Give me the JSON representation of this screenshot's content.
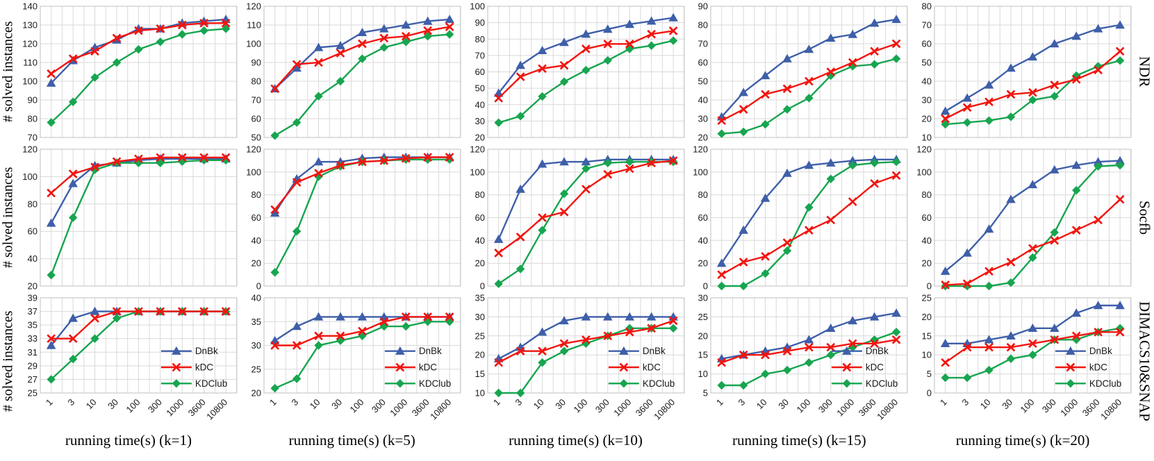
{
  "ylabel": "# solved instances",
  "row_labels": [
    "NDR",
    "Socfb",
    "DIMACS10&SNAP"
  ],
  "x_axis_titles": [
    "running time(s) (k=1)",
    "running time(s) (k=5)",
    "running time(s) (k=10)",
    "running time(s) (k=15)",
    "running time(s) (k=20)"
  ],
  "x_categories": [
    "1",
    "3",
    "10",
    "30",
    "100",
    "300",
    "1000",
    "3600",
    "10800"
  ],
  "legend": {
    "items": [
      "DnBk",
      "kDC",
      "KDClub"
    ],
    "position": "bottom-right-inside"
  },
  "series_colors": {
    "DnBk": "#3E5FA9",
    "kDC": "#F2150F",
    "KDClub": "#17A550"
  },
  "series_markers": {
    "DnBk": "triangle",
    "kDC": "x",
    "KDClub": "diamond"
  },
  "style_colors": {
    "grid": "#D9D9D9",
    "plot_border": "#BFBFBF",
    "tick_text": "#1A1A1A"
  },
  "chart_data": [
    {
      "type": "line",
      "group": "NDR",
      "k": 1,
      "ylim": [
        70,
        140
      ],
      "ystep": 10,
      "grid": true,
      "series": [
        {
          "name": "DnBk",
          "values": [
            99,
            111,
            118,
            122,
            128,
            128,
            131,
            132,
            133
          ]
        },
        {
          "name": "kDC",
          "values": [
            104,
            112,
            116,
            123,
            127,
            128,
            130,
            131,
            131
          ]
        },
        {
          "name": "KDClub",
          "values": [
            78,
            89,
            102,
            110,
            117,
            121,
            125,
            127,
            128
          ]
        }
      ]
    },
    {
      "type": "line",
      "group": "NDR",
      "k": 5,
      "ylim": [
        50,
        120
      ],
      "ystep": 10,
      "grid": true,
      "series": [
        {
          "name": "DnBk",
          "values": [
            76,
            87,
            98,
            99,
            106,
            108,
            110,
            112,
            113
          ]
        },
        {
          "name": "kDC",
          "values": [
            76,
            89,
            90,
            95,
            100,
            103,
            104,
            107,
            109
          ]
        },
        {
          "name": "KDClub",
          "values": [
            51,
            58,
            72,
            80,
            92,
            98,
            101,
            104,
            105
          ]
        }
      ]
    },
    {
      "type": "line",
      "group": "NDR",
      "k": 10,
      "ylim": [
        20,
        100
      ],
      "ystep": 10,
      "grid": true,
      "series": [
        {
          "name": "DnBk",
          "values": [
            47,
            64,
            73,
            78,
            83,
            86,
            89,
            91,
            93
          ]
        },
        {
          "name": "kDC",
          "values": [
            44,
            57,
            62,
            64,
            74,
            77,
            77,
            83,
            85
          ]
        },
        {
          "name": "KDClub",
          "values": [
            29,
            33,
            45,
            54,
            61,
            67,
            74,
            76,
            79
          ]
        }
      ]
    },
    {
      "type": "line",
      "group": "NDR",
      "k": 15,
      "ylim": [
        20,
        90
      ],
      "ystep": 10,
      "grid": true,
      "series": [
        {
          "name": "DnBk",
          "values": [
            31,
            44,
            53,
            62,
            67,
            73,
            75,
            81,
            83
          ]
        },
        {
          "name": "kDC",
          "values": [
            29,
            35,
            43,
            46,
            50,
            55,
            60,
            66,
            70
          ]
        },
        {
          "name": "KDClub",
          "values": [
            22,
            23,
            27,
            35,
            41,
            53,
            58,
            59,
            62
          ]
        }
      ]
    },
    {
      "type": "line",
      "group": "NDR",
      "k": 20,
      "ylim": [
        10,
        80
      ],
      "ystep": 10,
      "grid": true,
      "series": [
        {
          "name": "DnBk",
          "values": [
            24,
            31,
            38,
            47,
            53,
            60,
            64,
            68,
            70
          ]
        },
        {
          "name": "kDC",
          "values": [
            20,
            26,
            29,
            33,
            34,
            38,
            41,
            46,
            56
          ]
        },
        {
          "name": "KDClub",
          "values": [
            17,
            18,
            19,
            21,
            30,
            32,
            43,
            48,
            51
          ]
        }
      ]
    },
    {
      "type": "line",
      "group": "Socfb",
      "k": 1,
      "ylim": [
        20,
        120
      ],
      "ystep": 20,
      "grid": true,
      "series": [
        {
          "name": "DnBk",
          "values": [
            66,
            95,
            108,
            110,
            112,
            113,
            113,
            113,
            113
          ]
        },
        {
          "name": "kDC",
          "values": [
            88,
            102,
            107,
            111,
            113,
            114,
            114,
            114,
            114
          ]
        },
        {
          "name": "KDClub",
          "values": [
            28,
            70,
            105,
            110,
            110,
            110,
            111,
            112,
            112
          ]
        }
      ]
    },
    {
      "type": "line",
      "group": "Socfb",
      "k": 5,
      "ylim": [
        0,
        120
      ],
      "ystep": 20,
      "grid": true,
      "series": [
        {
          "name": "DnBk",
          "values": [
            64,
            94,
            109,
            109,
            112,
            113,
            113,
            113,
            113
          ]
        },
        {
          "name": "kDC",
          "values": [
            67,
            91,
            99,
            106,
            109,
            110,
            112,
            113,
            113
          ]
        },
        {
          "name": "KDClub",
          "values": [
            12,
            48,
            96,
            105,
            109,
            110,
            111,
            111,
            111
          ]
        }
      ]
    },
    {
      "type": "line",
      "group": "Socfb",
      "k": 10,
      "ylim": [
        0,
        120
      ],
      "ystep": 20,
      "grid": true,
      "series": [
        {
          "name": "DnBk",
          "values": [
            41,
            85,
            107,
            109,
            109,
            111,
            111,
            111,
            111
          ]
        },
        {
          "name": "kDC",
          "values": [
            29,
            43,
            60,
            65,
            85,
            98,
            103,
            108,
            110
          ]
        },
        {
          "name": "KDClub",
          "values": [
            2,
            15,
            49,
            81,
            103,
            108,
            109,
            109,
            109
          ]
        }
      ]
    },
    {
      "type": "line",
      "group": "Socfb",
      "k": 15,
      "ylim": [
        0,
        120
      ],
      "ystep": 20,
      "grid": true,
      "series": [
        {
          "name": "DnBk",
          "values": [
            20,
            49,
            77,
            99,
            106,
            108,
            110,
            111,
            111
          ]
        },
        {
          "name": "kDC",
          "values": [
            10,
            21,
            26,
            38,
            49,
            58,
            74,
            90,
            97
          ]
        },
        {
          "name": "KDClub",
          "values": [
            0,
            0,
            11,
            31,
            69,
            94,
            106,
            108,
            109
          ]
        }
      ]
    },
    {
      "type": "line",
      "group": "Socfb",
      "k": 20,
      "ylim": [
        0,
        120
      ],
      "ystep": 20,
      "grid": true,
      "series": [
        {
          "name": "DnBk",
          "values": [
            13,
            29,
            50,
            76,
            89,
            102,
            106,
            109,
            110
          ]
        },
        {
          "name": "kDC",
          "values": [
            1,
            2,
            13,
            21,
            33,
            40,
            49,
            58,
            76
          ]
        },
        {
          "name": "KDClub",
          "values": [
            0,
            0,
            0,
            3,
            25,
            47,
            84,
            105,
            106
          ]
        }
      ]
    },
    {
      "type": "line",
      "group": "DIMACS10&SNAP",
      "k": 1,
      "ylim": [
        25,
        39
      ],
      "ystep": 2,
      "grid": true,
      "legend": true,
      "xticks": true,
      "series": [
        {
          "name": "DnBk",
          "values": [
            32,
            36,
            37,
            37,
            37,
            37,
            37,
            37,
            37
          ]
        },
        {
          "name": "kDC",
          "values": [
            33,
            33,
            36,
            37,
            37,
            37,
            37,
            37,
            37
          ]
        },
        {
          "name": "KDClub",
          "values": [
            27,
            30,
            33,
            36,
            37,
            37,
            37,
            37,
            37
          ]
        }
      ]
    },
    {
      "type": "line",
      "group": "DIMACS10&SNAP",
      "k": 5,
      "ylim": [
        20,
        40
      ],
      "ystep": 5,
      "grid": true,
      "legend": true,
      "xticks": true,
      "series": [
        {
          "name": "DnBk",
          "values": [
            31,
            34,
            36,
            36,
            36,
            36,
            36,
            36,
            36
          ]
        },
        {
          "name": "kDC",
          "values": [
            30,
            30,
            32,
            32,
            33,
            35,
            36,
            36,
            36
          ]
        },
        {
          "name": "KDClub",
          "values": [
            21,
            23,
            30,
            31,
            32,
            34,
            34,
            35,
            35
          ]
        }
      ]
    },
    {
      "type": "line",
      "group": "DIMACS10&SNAP",
      "k": 10,
      "ylim": [
        10,
        35
      ],
      "ystep": 5,
      "grid": true,
      "legend": true,
      "xticks": true,
      "series": [
        {
          "name": "DnBk",
          "values": [
            19,
            22,
            26,
            29,
            30,
            30,
            30,
            30,
            30
          ]
        },
        {
          "name": "kDC",
          "values": [
            18,
            21,
            21,
            23,
            24,
            25,
            26,
            27,
            29
          ]
        },
        {
          "name": "KDClub",
          "values": [
            10,
            10,
            18,
            21,
            23,
            25,
            27,
            27,
            27
          ]
        }
      ]
    },
    {
      "type": "line",
      "group": "DIMACS10&SNAP",
      "k": 15,
      "ylim": [
        5,
        30
      ],
      "ystep": 5,
      "grid": true,
      "legend": true,
      "xticks": true,
      "series": [
        {
          "name": "DnBk",
          "values": [
            14,
            15,
            16,
            17,
            19,
            22,
            24,
            25,
            26
          ]
        },
        {
          "name": "kDC",
          "values": [
            13,
            15,
            15,
            16,
            17,
            17,
            18,
            18,
            19
          ]
        },
        {
          "name": "KDClub",
          "values": [
            7,
            7,
            10,
            11,
            13,
            15,
            17,
            19,
            21
          ]
        }
      ]
    },
    {
      "type": "line",
      "group": "DIMACS10&SNAP",
      "k": 20,
      "ylim": [
        0,
        25
      ],
      "ystep": 5,
      "grid": true,
      "legend": true,
      "xticks": true,
      "series": [
        {
          "name": "DnBk",
          "values": [
            13,
            13,
            14,
            15,
            17,
            17,
            21,
            23,
            23
          ]
        },
        {
          "name": "kDC",
          "values": [
            8,
            12,
            12,
            12,
            13,
            14,
            15,
            16,
            16
          ]
        },
        {
          "name": "KDClub",
          "values": [
            4,
            4,
            6,
            9,
            10,
            14,
            14,
            16,
            17
          ]
        }
      ]
    }
  ]
}
